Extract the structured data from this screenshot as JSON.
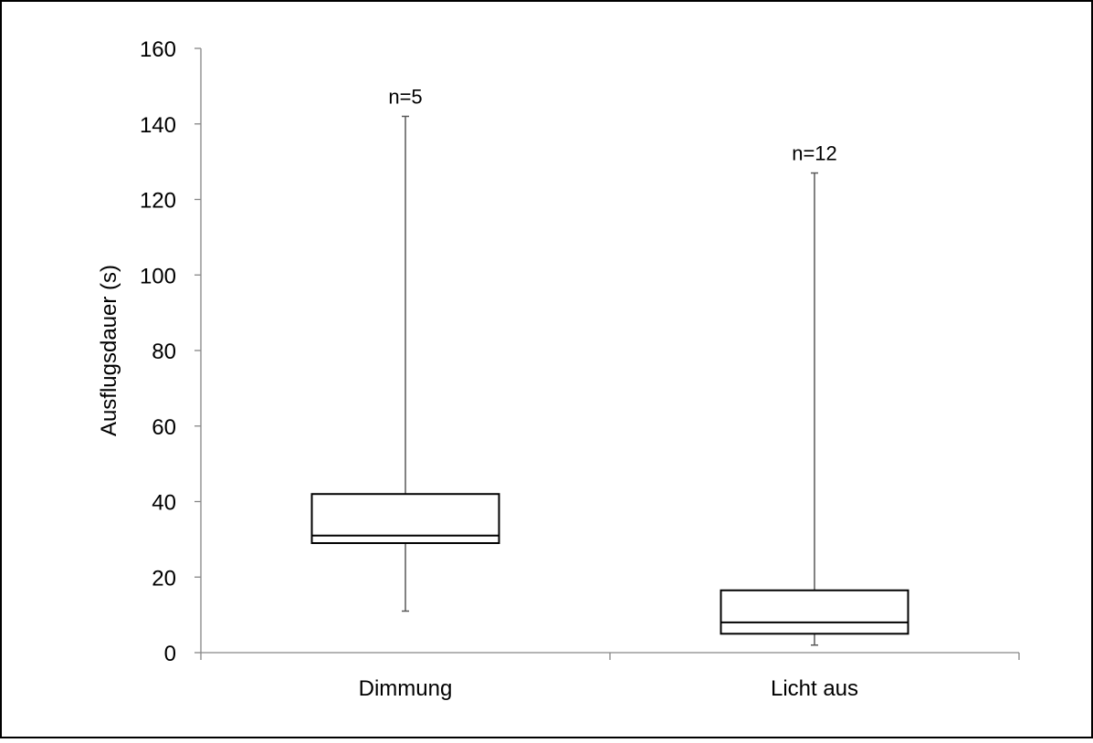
{
  "chart_data": {
    "type": "box",
    "title": "",
    "xlabel": "",
    "ylabel": "Ausflugsdauer  (s)",
    "ylim": [
      0,
      160
    ],
    "yticks": [
      0,
      20,
      40,
      60,
      80,
      100,
      120,
      140,
      160
    ],
    "grid": false,
    "categories": [
      "Dimmung",
      "Licht aus"
    ],
    "boxes": [
      {
        "category": "Dimmung",
        "min": 11,
        "q1": 29,
        "median": 31,
        "q3": 42,
        "max": 142,
        "n_label": "n=5"
      },
      {
        "category": "Licht aus",
        "min": 2,
        "q1": 5,
        "median": 8,
        "q3": 16.5,
        "max": 127,
        "n_label": "n=12"
      }
    ],
    "colors": {
      "box_stroke": "#000000",
      "whisker": "#595959",
      "axis": "#868686"
    }
  }
}
